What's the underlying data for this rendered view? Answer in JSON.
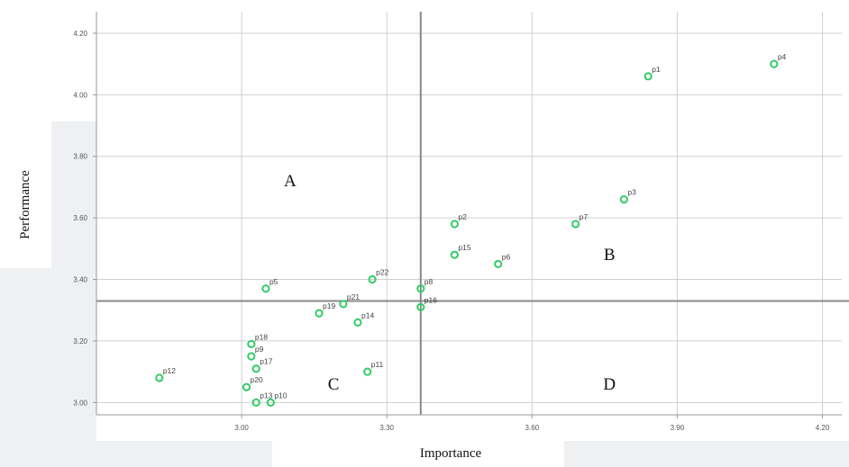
{
  "chart_data": {
    "type": "scatter",
    "xlabel": "Importance",
    "ylabel": "Performance",
    "xlim": [
      2.7,
      4.24
    ],
    "ylim": [
      2.96,
      4.27
    ],
    "x_ticks": [
      3.0,
      3.3,
      3.6,
      3.9,
      4.2
    ],
    "x_tick_labels": [
      "3.00",
      "3.30",
      "3.60",
      "3.90",
      "4.20"
    ],
    "y_ticks": [
      3.0,
      3.2,
      3.4,
      3.6,
      3.8,
      4.0,
      4.2
    ],
    "y_tick_labels": [
      "3.00",
      "3.20",
      "3.40",
      "3.60",
      "3.80",
      "4.00",
      "4.20"
    ],
    "grid": true,
    "reference_lines": {
      "x": 3.37,
      "y": 3.33
    },
    "quadrant_labels": [
      {
        "text": "A",
        "x": 3.1,
        "y": 3.72
      },
      {
        "text": "B",
        "x": 3.76,
        "y": 3.48
      },
      {
        "text": "C",
        "x": 3.19,
        "y": 3.06
      },
      {
        "text": "D",
        "x": 3.76,
        "y": 3.06
      }
    ],
    "points": [
      {
        "label": "p1",
        "x": 3.84,
        "y": 4.06
      },
      {
        "label": "p2",
        "x": 3.44,
        "y": 3.58
      },
      {
        "label": "p3",
        "x": 3.79,
        "y": 3.66
      },
      {
        "label": "p4",
        "x": 4.1,
        "y": 4.1
      },
      {
        "label": "p5",
        "x": 3.05,
        "y": 3.37
      },
      {
        "label": "p6",
        "x": 3.53,
        "y": 3.45
      },
      {
        "label": "p7",
        "x": 3.69,
        "y": 3.58
      },
      {
        "label": "p8",
        "x": 3.37,
        "y": 3.37
      },
      {
        "label": "p9",
        "x": 3.02,
        "y": 3.15
      },
      {
        "label": "p10",
        "x": 3.06,
        "y": 3.0
      },
      {
        "label": "p11",
        "x": 3.26,
        "y": 3.1
      },
      {
        "label": "p12",
        "x": 2.83,
        "y": 3.08
      },
      {
        "label": "p13",
        "x": 3.03,
        "y": 3.0
      },
      {
        "label": "p14",
        "x": 3.24,
        "y": 3.26
      },
      {
        "label": "p15",
        "x": 3.44,
        "y": 3.48
      },
      {
        "label": "p16",
        "x": 3.37,
        "y": 3.31
      },
      {
        "label": "p17",
        "x": 3.03,
        "y": 3.11
      },
      {
        "label": "p18",
        "x": 3.02,
        "y": 3.19
      },
      {
        "label": "p19",
        "x": 3.16,
        "y": 3.29
      },
      {
        "label": "p20",
        "x": 3.01,
        "y": 3.05
      },
      {
        "label": "p21",
        "x": 3.21,
        "y": 3.32
      },
      {
        "label": "p22",
        "x": 3.27,
        "y": 3.4
      }
    ],
    "colors": {
      "point": "#33cc66",
      "grid": "#cfcfcf",
      "reference": "#888888"
    }
  }
}
